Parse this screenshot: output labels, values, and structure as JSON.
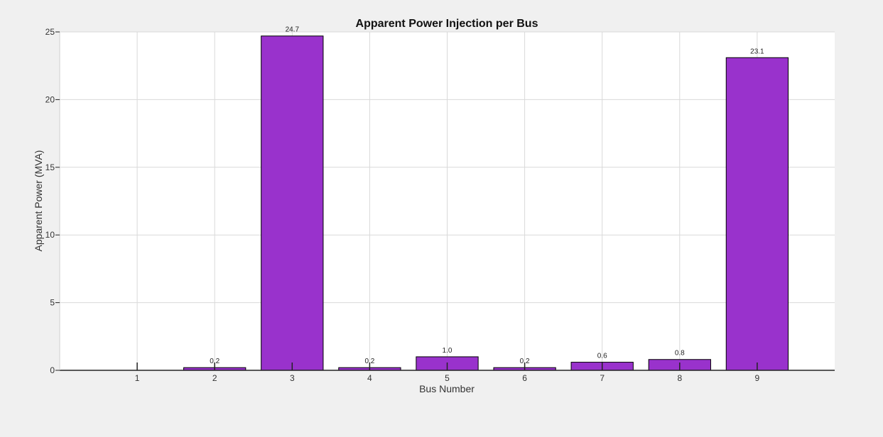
{
  "chart_data": {
    "type": "bar",
    "title": "Apparent Power Injection per Bus",
    "xlabel": "Bus Number",
    "ylabel": "Apparent Power (MVA)",
    "categories": [
      "1",
      "2",
      "3",
      "4",
      "5",
      "6",
      "7",
      "8",
      "9"
    ],
    "values": [
      0.0,
      0.2,
      24.7,
      0.2,
      1.0,
      0.2,
      0.6,
      0.8,
      23.1
    ],
    "data_labels": [
      "",
      "0.2",
      "24.7",
      "0.2",
      "1.0",
      "0.2",
      "0.6",
      "0.8",
      "23.1"
    ],
    "ylim": [
      0,
      25
    ],
    "yticks": [
      0,
      5,
      10,
      15,
      20,
      25
    ],
    "grid": true,
    "bar_color": "#9932CC",
    "bar_edge_color": "#000000"
  }
}
